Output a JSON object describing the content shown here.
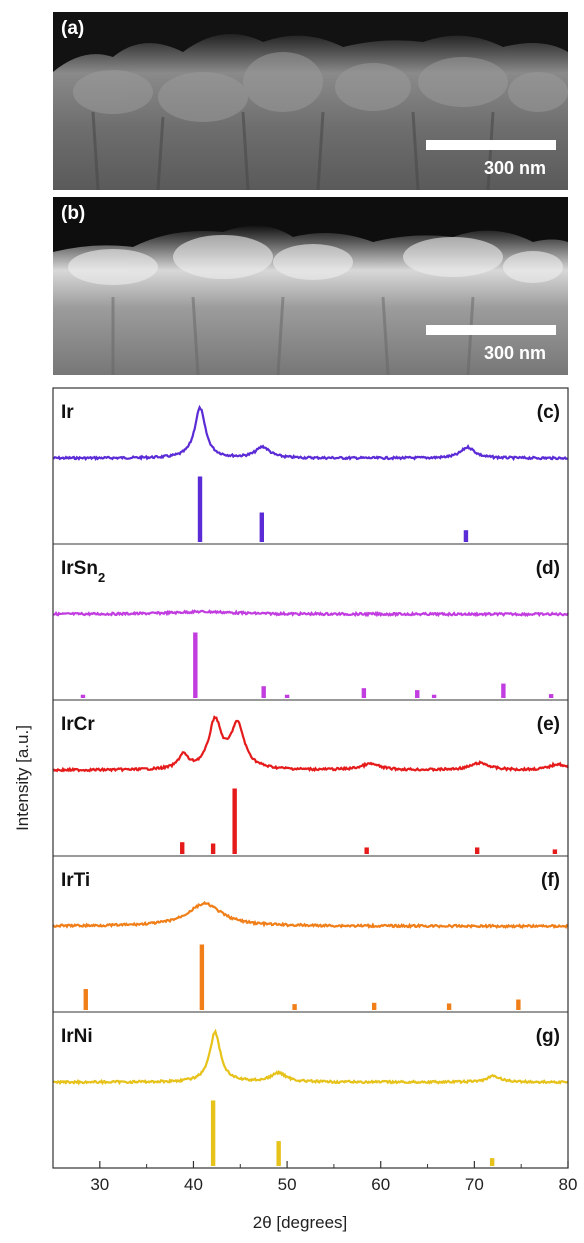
{
  "sem_panels": [
    {
      "label": "(a)",
      "scale_bar": "300 nm"
    },
    {
      "label": "(b)",
      "scale_bar": "300 nm"
    }
  ],
  "chart_data": {
    "type": "line",
    "xlabel": "2θ [degrees]",
    "ylabel": "Intensity [a.u.]",
    "xlim": [
      25,
      80
    ],
    "xticks": [
      30,
      40,
      50,
      60,
      70,
      80
    ],
    "panels": [
      {
        "name": "Ir",
        "label": "(c)",
        "color": "#5b2bd6",
        "peaks": [
          {
            "x": 40.7,
            "h": 1.0,
            "w": 0.7
          },
          {
            "x": 47.4,
            "h": 0.22,
            "w": 0.9
          },
          {
            "x": 69.3,
            "h": 0.22,
            "w": 0.9
          }
        ],
        "sticks": [
          {
            "x": 40.7,
            "h": 1.0
          },
          {
            "x": 47.3,
            "h": 0.45
          },
          {
            "x": 69.1,
            "h": 0.18
          }
        ]
      },
      {
        "name": "IrSn",
        "name_sub": "2",
        "label": "(d)",
        "color": "#c23de0",
        "peaks": [
          {
            "x": 41.0,
            "h": 0.05,
            "w": 4
          }
        ],
        "sticks": [
          {
            "x": 28.2,
            "h": 0.05
          },
          {
            "x": 40.2,
            "h": 1.0
          },
          {
            "x": 47.5,
            "h": 0.18
          },
          {
            "x": 50.0,
            "h": 0.05
          },
          {
            "x": 58.2,
            "h": 0.15
          },
          {
            "x": 63.9,
            "h": 0.12
          },
          {
            "x": 65.7,
            "h": 0.05
          },
          {
            "x": 73.1,
            "h": 0.22
          },
          {
            "x": 78.2,
            "h": 0.06
          }
        ]
      },
      {
        "name": "IrCr",
        "label": "(e)",
        "color": "#e51b1b",
        "peaks": [
          {
            "x": 38.9,
            "h": 0.28,
            "w": 0.6
          },
          {
            "x": 42.3,
            "h": 0.95,
            "w": 0.8
          },
          {
            "x": 44.7,
            "h": 0.88,
            "w": 0.9
          },
          {
            "x": 58.9,
            "h": 0.12,
            "w": 1.2
          },
          {
            "x": 70.6,
            "h": 0.14,
            "w": 1.2
          },
          {
            "x": 78.9,
            "h": 0.12,
            "w": 1.0
          }
        ],
        "sticks": [
          {
            "x": 38.8,
            "h": 0.18
          },
          {
            "x": 42.1,
            "h": 0.16
          },
          {
            "x": 44.4,
            "h": 1.0
          },
          {
            "x": 58.5,
            "h": 0.1
          },
          {
            "x": 70.3,
            "h": 0.1
          },
          {
            "x": 78.6,
            "h": 0.07
          }
        ]
      },
      {
        "name": "IrTi",
        "label": "(f)",
        "color": "#f07f1a",
        "peaks": [
          {
            "x": 41.2,
            "h": 0.45,
            "w": 2.2
          }
        ],
        "sticks": [
          {
            "x": 28.5,
            "h": 0.32
          },
          {
            "x": 40.9,
            "h": 1.0
          },
          {
            "x": 50.8,
            "h": 0.09
          },
          {
            "x": 59.3,
            "h": 0.11
          },
          {
            "x": 67.3,
            "h": 0.1
          },
          {
            "x": 74.7,
            "h": 0.16
          }
        ]
      },
      {
        "name": "IrNi",
        "label": "(g)",
        "color": "#e6c21a",
        "peaks": [
          {
            "x": 42.3,
            "h": 1.0,
            "w": 0.7
          },
          {
            "x": 49.1,
            "h": 0.18,
            "w": 1.0
          },
          {
            "x": 72.1,
            "h": 0.12,
            "w": 0.9
          }
        ],
        "sticks": [
          {
            "x": 42.1,
            "h": 1.0
          },
          {
            "x": 49.1,
            "h": 0.38
          },
          {
            "x": 71.9,
            "h": 0.12
          }
        ]
      }
    ]
  }
}
